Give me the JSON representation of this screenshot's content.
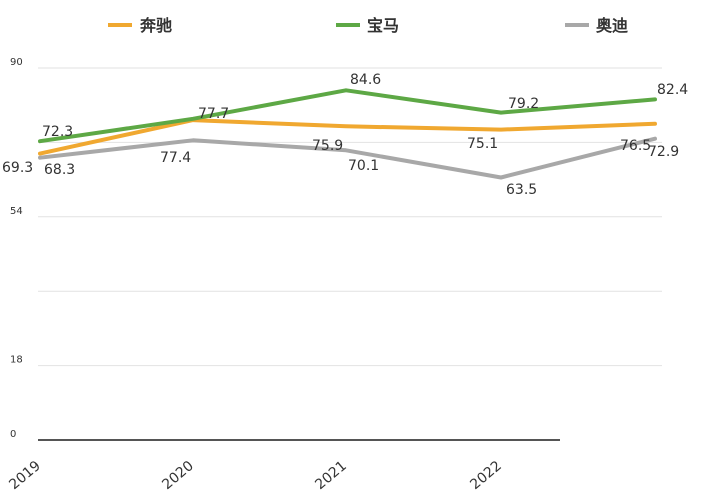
{
  "chart_data": {
    "type": "line",
    "categories": [
      "2019",
      "2020",
      "2021",
      "2022",
      ""
    ],
    "y_ticks": [
      "0",
      "18",
      "54",
      "90"
    ],
    "ylim": [
      0,
      90
    ],
    "grid": true,
    "legend_position": "top",
    "series": [
      {
        "name": "奔驰",
        "color": "#F0A830",
        "values": [
          69.3,
          77.4,
          75.9,
          75.1,
          76.5
        ]
      },
      {
        "name": "宝马",
        "color": "#5DA845",
        "values": [
          72.3,
          77.7,
          84.6,
          79.2,
          82.4
        ]
      },
      {
        "name": "奥迪",
        "color": "#A8A8A8",
        "values": [
          68.3,
          72.5,
          70.1,
          63.5,
          72.9
        ]
      }
    ],
    "data_labels": [
      "69.3",
      "72.3",
      "68.3",
      "77.4",
      "77.7",
      "84.6",
      "75.9",
      "70.1",
      "79.2",
      "75.1",
      "63.5",
      "82.4",
      "76.5",
      "72.9"
    ]
  }
}
